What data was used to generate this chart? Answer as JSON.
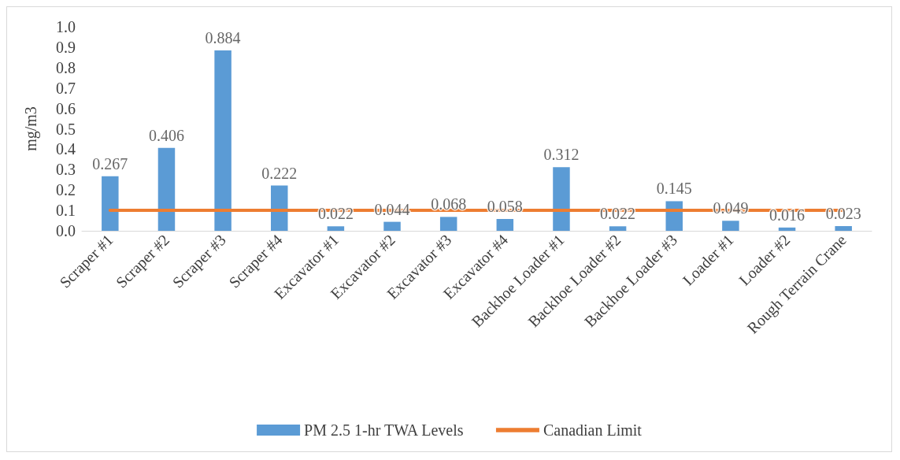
{
  "chart_data": {
    "type": "bar",
    "ylabel": "mg/m3",
    "categories": [
      "Scraper #1",
      "Scraper #2",
      "Scraper #3",
      "Scraper #4",
      "Excavator #1",
      "Excavator #2",
      "Excavator #3",
      "Excavator #4",
      "Backhoe Loader #1",
      "Backhoe Loader #2",
      "Backhoe Loader #3",
      "Loader #1",
      "Loader #2",
      "Rough Terrain Crane"
    ],
    "series": [
      {
        "name": "PM 2.5 1-hr TWA Levels",
        "color": "#5b9bd5",
        "data_labels": true,
        "values": [
          0.267,
          0.406,
          0.884,
          0.222,
          0.022,
          0.044,
          0.068,
          0.058,
          0.312,
          0.022,
          0.145,
          0.049,
          0.016,
          0.023
        ]
      },
      {
        "name": "Canadian Limit",
        "type": "line",
        "color": "#ed7d31",
        "values": [
          0.1,
          0.1,
          0.1,
          0.1,
          0.1,
          0.1,
          0.1,
          0.1,
          0.1,
          0.1,
          0.1,
          0.1,
          0.1,
          0.1
        ]
      }
    ],
    "ylim": [
      0,
      1
    ],
    "yticks": [
      {
        "value": 0,
        "label": "0.0"
      },
      0.1,
      0.2,
      0.3,
      0.4,
      0.5,
      0.6,
      0.7,
      0.8,
      0.9,
      {
        "value": 1,
        "label": "1.0"
      }
    ],
    "grid": false,
    "legend": "bottom",
    "marker": "none",
    "line_style": "solid"
  }
}
